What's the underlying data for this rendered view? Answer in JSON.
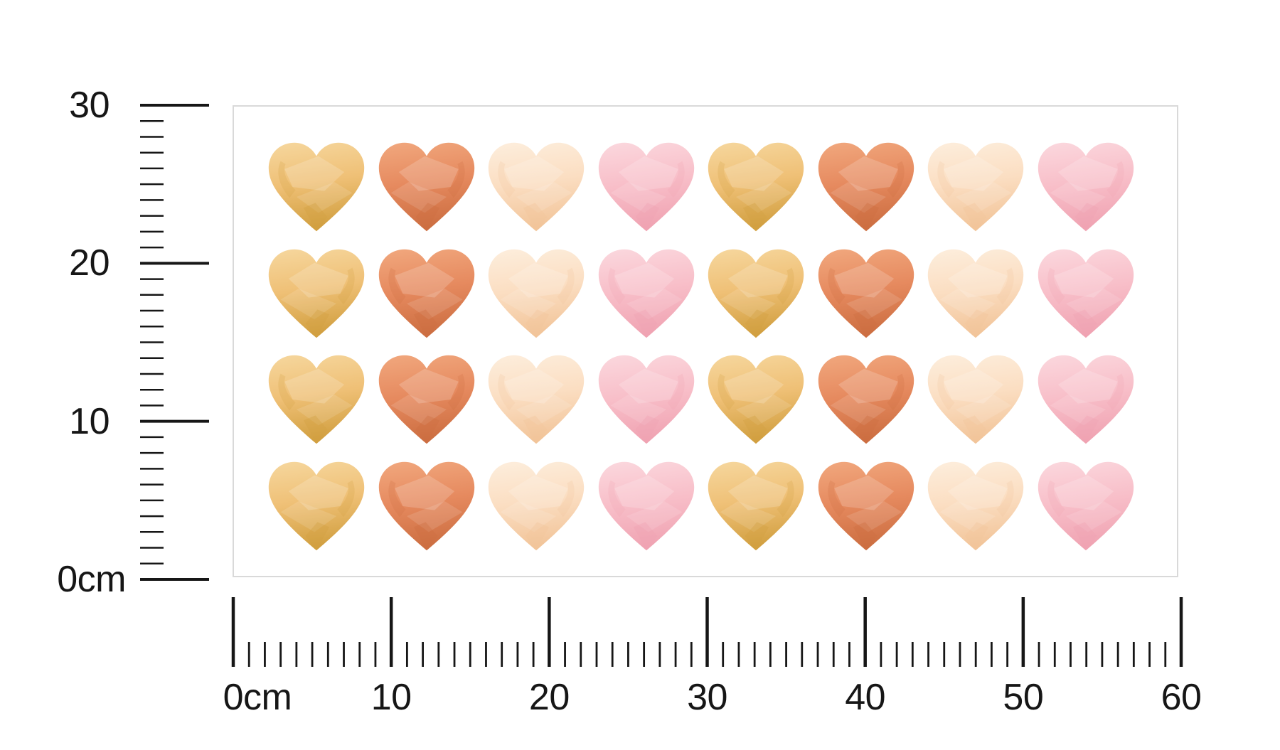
{
  "rulers": {
    "vertical": {
      "orientation": "vertical",
      "unit": "cm",
      "range_cm": [
        0,
        30
      ],
      "major_step_cm": 10,
      "minor_step_cm": 1,
      "major_values": [
        30,
        20,
        10,
        0
      ],
      "major_labels": [
        "30",
        "20",
        "10",
        "0cm"
      ]
    },
    "horizontal": {
      "orientation": "horizontal",
      "unit": "cm",
      "range_cm": [
        0,
        60
      ],
      "major_step_cm": 10,
      "minor_step_cm": 1,
      "major_values": [
        0,
        10,
        20,
        30,
        40,
        50,
        60
      ],
      "major_labels": [
        "0cm",
        "10",
        "20",
        "30",
        "40",
        "50",
        "60"
      ]
    }
  },
  "sheet": {
    "rows": 4,
    "columns": 8,
    "total_hearts": 32,
    "column_pattern": [
      "gold",
      "terracotta",
      "cream",
      "pink",
      "gold",
      "terracotta",
      "cream",
      "pink"
    ]
  },
  "colors": {
    "ink": "#161616",
    "background": "#ffffff",
    "sheet_border": "#d9d9d9",
    "hearts": {
      "gold": {
        "base": "#efc076",
        "light": "#f6d79e",
        "dark": "#d2a041"
      },
      "terracotta": {
        "base": "#e68a5f",
        "light": "#f1a87e",
        "dark": "#cd6f42"
      },
      "cream": {
        "base": "#fbdec2",
        "light": "#fdeedd",
        "dark": "#f2c59a"
      },
      "pink": {
        "base": "#f8bfc9",
        "light": "#fbd8de",
        "dark": "#f0a4b3"
      }
    }
  }
}
